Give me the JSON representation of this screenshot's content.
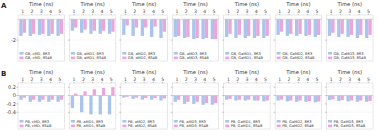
{
  "chart_data": [
    {
      "type": "bar",
      "annotation": "A",
      "title": "Time (ns)",
      "categories": [
        "1",
        "2",
        "3",
        "4",
        "5"
      ],
      "ylim": [
        -4,
        0.4
      ],
      "yticks": [
        -2
      ],
      "tick_labels": true,
      "legend": "lower left",
      "series": [
        {
          "name": "GB, cMD, 8R3",
          "color": "#a9c5ec",
          "values": [
            -1.6,
            -1.6,
            -1.5,
            -1.6,
            -1.6
          ]
        },
        {
          "name": "GB, cMD, 8S4B",
          "color": "#e9a6d9",
          "values": [
            -1.3,
            -1.4,
            -1.4,
            -1.4,
            -1.4
          ]
        }
      ]
    },
    {
      "type": "bar",
      "title": "Time (ns)",
      "categories": [
        "1",
        "2",
        "3",
        "4",
        "5"
      ],
      "ylim": [
        -4,
        0.4
      ],
      "yticks": [
        -2
      ],
      "tick_labels": "x",
      "legend": "lower left",
      "series": [
        {
          "name": "GB, aMD1, 8R3",
          "color": "#a9c5ec",
          "values": [
            -1.1,
            -1.3,
            -1.4,
            -1.4,
            -1.4
          ]
        },
        {
          "name": "GB, aMD1, 8S4B",
          "color": "#e9a6d9",
          "values": [
            -0.8,
            -1.0,
            -1.1,
            -1.1,
            -1.2
          ]
        }
      ]
    },
    {
      "type": "bar",
      "title": "Time (ns)",
      "categories": [
        "1",
        "2",
        "3",
        "4",
        "5"
      ],
      "ylim": [
        -4,
        0.4
      ],
      "yticks": [
        -2
      ],
      "tick_labels": "x",
      "legend": "lower left",
      "series": [
        {
          "name": "GB, aMD2, 8R3",
          "color": "#a9c5ec",
          "values": [
            -1.5,
            -1.6,
            -1.6,
            -1.7,
            -1.8
          ]
        },
        {
          "name": "GB, aMD2, 8S4B",
          "color": "#e9a6d9",
          "values": [
            -0.6,
            -0.8,
            -0.8,
            -0.7,
            -1.2
          ]
        }
      ]
    },
    {
      "type": "bar",
      "title": "Time (ns)",
      "categories": [
        "1",
        "2",
        "3",
        "4",
        "5"
      ],
      "ylim": [
        -4,
        0.4
      ],
      "yticks": [
        -2
      ],
      "tick_labels": "x",
      "legend": "lower left",
      "series": [
        {
          "name": "GB, aMD3, 8R3",
          "color": "#a9c5ec",
          "values": [
            -1.7,
            -1.8,
            -1.9,
            -1.9,
            -1.9
          ]
        },
        {
          "name": "GB, aMD3, 8S4B",
          "color": "#e9a6d9",
          "values": [
            -1.6,
            -1.7,
            -1.8,
            -1.8,
            -1.9
          ]
        }
      ]
    },
    {
      "type": "bar",
      "title": "Time (ns)",
      "categories": [
        "1",
        "2",
        "3",
        "4",
        "5"
      ],
      "ylim": [
        -4,
        0.4
      ],
      "yticks": [
        -2
      ],
      "tick_labels": "x",
      "legend": "lower left",
      "series": [
        {
          "name": "GB, GaMD1, 8R3",
          "color": "#a9c5ec",
          "values": [
            -1.7,
            -1.8,
            -1.8,
            -1.8,
            -1.8
          ]
        },
        {
          "name": "GB, GaMD1, 8S4B",
          "color": "#e9a6d9",
          "values": [
            -1.4,
            -1.5,
            -1.6,
            -1.6,
            -1.6
          ]
        }
      ]
    },
    {
      "type": "bar",
      "title": "Time (ns)",
      "categories": [
        "1",
        "2",
        "3",
        "4",
        "5"
      ],
      "ylim": [
        -4,
        0.4
      ],
      "yticks": [
        -2
      ],
      "tick_labels": "x",
      "legend": "lower left",
      "series": [
        {
          "name": "GB, GaMD2, 8R3",
          "color": "#a9c5ec",
          "values": [
            -1.5,
            -1.6,
            -1.6,
            -1.6,
            -1.7
          ]
        },
        {
          "name": "GB, GaMD2, 8S4B",
          "color": "#e9a6d9",
          "values": [
            -1.2,
            -1.4,
            -1.4,
            -1.5,
            -1.5
          ]
        }
      ]
    },
    {
      "type": "bar",
      "title": "Time (ns)",
      "categories": [
        "1",
        "2",
        "3",
        "4",
        "5"
      ],
      "ylim": [
        -4,
        0.4
      ],
      "yticks": [
        -2
      ],
      "tick_labels": "x",
      "legend": "lower left",
      "series": [
        {
          "name": "GB, GaMD3, 8R3",
          "color": "#a9c5ec",
          "values": [
            -1.6,
            -1.7,
            -1.7,
            -1.8,
            -1.8
          ]
        },
        {
          "name": "GB, GaMD3, 8S4B",
          "color": "#e9a6d9",
          "values": [
            -1.3,
            -1.4,
            -1.5,
            -1.5,
            -1.5
          ]
        }
      ]
    },
    {
      "type": "bar",
      "annotation": "B",
      "title": "Time (ns)",
      "categories": [
        "1",
        "2",
        "3",
        "4",
        "5"
      ],
      "ylim": [
        -0.8,
        0.3
      ],
      "yticks": [
        0.2,
        0,
        -0.2,
        -0.4
      ],
      "tick_labels": true,
      "legend": "lower left",
      "series": [
        {
          "name": "PB, cMD, 8R3",
          "color": "#a9c5ec",
          "values": [
            -0.1,
            -0.15,
            -0.15,
            -0.15,
            -0.15
          ]
        },
        {
          "name": "PB, cMD, 8S4B",
          "color": "#e9a6d9",
          "values": [
            -0.05,
            -0.1,
            -0.1,
            -0.1,
            -0.1
          ]
        }
      ]
    },
    {
      "type": "bar",
      "title": "Time (ns)",
      "categories": [
        "1",
        "2",
        "3",
        "4",
        "5"
      ],
      "ylim": [
        -0.8,
        0.3
      ],
      "yticks": [
        0.2,
        0,
        -0.2,
        -0.4
      ],
      "tick_labels": "x",
      "legend": "lower left",
      "series": [
        {
          "name": "PB, aMD1, 8R3",
          "color": "#a9c5ec",
          "values": [
            -0.3,
            -0.4,
            -0.45,
            -0.45,
            -0.45
          ]
        },
        {
          "name": "PB, aMD1, 8S4B",
          "color": "#e9a6d9",
          "values": [
            0.05,
            0.1,
            0.15,
            0.18,
            0.2
          ]
        }
      ]
    },
    {
      "type": "bar",
      "title": "Time (ns)",
      "categories": [
        "1",
        "2",
        "3",
        "4",
        "5"
      ],
      "ylim": [
        -0.8,
        0.3
      ],
      "yticks": [
        0.2,
        0,
        -0.2,
        -0.4
      ],
      "tick_labels": "x",
      "legend": "lower left",
      "series": [
        {
          "name": "PB, aMD2, 8R3",
          "color": "#a9c5ec",
          "values": [
            -0.05,
            -0.08,
            -0.1,
            -0.1,
            -0.12
          ]
        },
        {
          "name": "PB, aMD2, 8S4B",
          "color": "#e9a6d9",
          "values": [
            -0.03,
            -0.05,
            -0.06,
            -0.06,
            -0.07
          ]
        }
      ]
    },
    {
      "type": "bar",
      "title": "Time (ns)",
      "categories": [
        "1",
        "2",
        "3",
        "4",
        "5"
      ],
      "ylim": [
        -0.8,
        0.3
      ],
      "yticks": [
        0.2,
        0,
        -0.2,
        -0.4
      ],
      "tick_labels": "x",
      "legend": "lower left",
      "series": [
        {
          "name": "PB, aMD3, 8R3",
          "color": "#a9c5ec",
          "values": [
            -0.15,
            -0.2,
            -0.2,
            -0.22,
            -0.22
          ]
        },
        {
          "name": "PB, aMD3, 8S4B",
          "color": "#e9a6d9",
          "values": [
            -0.1,
            -0.15,
            -0.15,
            -0.18,
            -0.18
          ]
        }
      ]
    },
    {
      "type": "bar",
      "title": "Time (ns)",
      "categories": [
        "1",
        "2",
        "3",
        "4",
        "5"
      ],
      "ylim": [
        -0.8,
        0.3
      ],
      "yticks": [
        0.2,
        0,
        -0.2,
        -0.4
      ],
      "tick_labels": "x",
      "legend": "lower left",
      "series": [
        {
          "name": "PB, GaMD1, 8R3",
          "color": "#a9c5ec",
          "values": [
            -0.1,
            -0.12,
            -0.12,
            -0.12,
            -0.14
          ]
        },
        {
          "name": "PB, GaMD1, 8S4B",
          "color": "#e9a6d9",
          "values": [
            -0.08,
            -0.1,
            -0.1,
            -0.12,
            -0.12
          ]
        }
      ]
    },
    {
      "type": "bar",
      "title": "Time (ns)",
      "categories": [
        "1",
        "2",
        "3",
        "4",
        "5"
      ],
      "ylim": [
        -0.8,
        0.3
      ],
      "yticks": [
        0.2,
        0,
        -0.2,
        -0.4
      ],
      "tick_labels": "x",
      "legend": "lower left",
      "series": [
        {
          "name": "PB, GaMD2, 8R3",
          "color": "#a9c5ec",
          "values": [
            -0.12,
            -0.14,
            -0.15,
            -0.15,
            -0.16
          ]
        },
        {
          "name": "PB, GaMD2, 8S4B",
          "color": "#e9a6d9",
          "values": [
            -0.1,
            -0.12,
            -0.12,
            -0.13,
            -0.14
          ]
        }
      ]
    },
    {
      "type": "bar",
      "title": "Time (ns)",
      "categories": [
        "1",
        "2",
        "3",
        "4",
        "5"
      ],
      "ylim": [
        -0.8,
        0.3
      ],
      "yticks": [
        0.2,
        0,
        -0.2,
        -0.4
      ],
      "tick_labels": "x",
      "legend": "lower left",
      "series": [
        {
          "name": "PB, GaMD3, 8R3",
          "color": "#a9c5ec",
          "values": [
            -0.11,
            -0.13,
            -0.14,
            -0.15,
            -0.15
          ]
        },
        {
          "name": "PB, GaMD3, 8S4B",
          "color": "#e9a6d9",
          "values": [
            -0.09,
            -0.11,
            -0.12,
            -0.12,
            -0.13
          ]
        }
      ]
    }
  ]
}
